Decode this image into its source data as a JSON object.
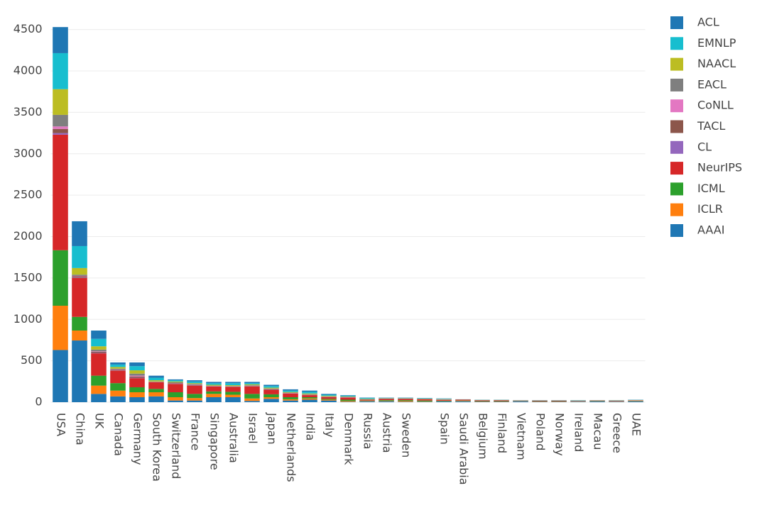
{
  "chart_data": {
    "type": "stacked-bar",
    "categories": [
      "USA",
      "China",
      "UK",
      "Canada",
      "Germany",
      "South Korea",
      "Switzerland",
      "France",
      "Singapore",
      "Australia",
      "Israel",
      "Japan",
      "Netherlands",
      "India",
      "Italy",
      "Denmark",
      "Russia",
      "Austria",
      "Sweden",
      null,
      "Spain",
      "Saudi Arabia",
      "Belgium",
      "Finland",
      "Vietnam",
      "Poland",
      "Norway",
      "Ireland",
      "Macau",
      "Greece",
      "UAE"
    ],
    "series": [
      {
        "name": "ACL",
        "color": "#1f77b4",
        "values": [
          315,
          300,
          100,
          25,
          45,
          25,
          10,
          15,
          15,
          15,
          15,
          15,
          15,
          15,
          10,
          5,
          5,
          3,
          3,
          3,
          4,
          1,
          1,
          1,
          1,
          1,
          1,
          2,
          1,
          2,
          2
        ]
      },
      {
        "name": "EMNLP",
        "color": "#17becf",
        "values": [
          435,
          265,
          90,
          30,
          50,
          30,
          15,
          20,
          20,
          25,
          15,
          20,
          17,
          20,
          12,
          10,
          10,
          4,
          4,
          4,
          4,
          1,
          2,
          2,
          2,
          2,
          2,
          3,
          2,
          2,
          3
        ]
      },
      {
        "name": "NAACL",
        "color": "#bcbd22",
        "values": [
          310,
          80,
          40,
          20,
          40,
          15,
          10,
          10,
          10,
          10,
          10,
          10,
          8,
          10,
          8,
          5,
          5,
          3,
          3,
          3,
          4,
          1,
          2,
          2,
          1,
          1,
          1,
          2,
          1,
          2,
          2
        ]
      },
      {
        "name": "EACL",
        "color": "#7f7f7f",
        "values": [
          140,
          15,
          20,
          10,
          25,
          3,
          10,
          10,
          4,
          4,
          6,
          8,
          4,
          5,
          5,
          5,
          3,
          3,
          3,
          3,
          3,
          1,
          2,
          2,
          1,
          1,
          1,
          2,
          1,
          2,
          1
        ]
      },
      {
        "name": "CoNLL",
        "color": "#e377c2",
        "values": [
          30,
          5,
          5,
          5,
          10,
          3,
          3,
          3,
          2,
          2,
          3,
          3,
          2,
          2,
          2,
          2,
          1,
          1,
          1,
          1,
          1,
          0,
          1,
          1,
          0,
          1,
          1,
          1,
          0,
          1,
          1
        ]
      },
      {
        "name": "TACL",
        "color": "#8c564b",
        "values": [
          50,
          15,
          15,
          8,
          15,
          3,
          5,
          5,
          3,
          3,
          5,
          3,
          3,
          2,
          2,
          2,
          1,
          1,
          1,
          1,
          1,
          1,
          1,
          1,
          1,
          1,
          1,
          1,
          0,
          1,
          1
        ]
      },
      {
        "name": "CL",
        "color": "#9467bd",
        "values": [
          20,
          5,
          5,
          2,
          5,
          1,
          2,
          2,
          1,
          1,
          1,
          1,
          1,
          1,
          1,
          1,
          0,
          0,
          0,
          0,
          0,
          0,
          0,
          0,
          0,
          0,
          0,
          0,
          0,
          0,
          0
        ]
      },
      {
        "name": "NeurIPS",
        "color": "#d62728",
        "values": [
          1395,
          470,
          270,
          150,
          110,
          80,
          100,
          100,
          60,
          60,
          90,
          55,
          45,
          25,
          20,
          25,
          10,
          15,
          15,
          15,
          10,
          10,
          8,
          8,
          4,
          6,
          6,
          4,
          4,
          5,
          4
        ]
      },
      {
        "name": "ICML",
        "color": "#2ca02c",
        "values": [
          670,
          165,
          120,
          90,
          60,
          40,
          60,
          50,
          30,
          35,
          55,
          35,
          25,
          15,
          10,
          15,
          5,
          10,
          10,
          10,
          5,
          5,
          5,
          5,
          3,
          4,
          4,
          3,
          3,
          3,
          3
        ]
      },
      {
        "name": "ICLR",
        "color": "#ff7f0e",
        "values": [
          535,
          120,
          100,
          70,
          60,
          50,
          40,
          30,
          40,
          30,
          30,
          20,
          15,
          15,
          10,
          10,
          5,
          5,
          10,
          5,
          3,
          5,
          3,
          3,
          2,
          3,
          3,
          2,
          3,
          2,
          3
        ]
      },
      {
        "name": "AAAI",
        "color": "#1f77b4",
        "values": [
          630,
          745,
          100,
          70,
          60,
          70,
          20,
          20,
          60,
          60,
          15,
          40,
          20,
          30,
          20,
          5,
          10,
          10,
          5,
          5,
          10,
          10,
          5,
          5,
          10,
          5,
          5,
          5,
          10,
          5,
          10
        ]
      }
    ],
    "ylim": [
      0,
      4600
    ],
    "yticks": [
      0,
      500,
      1000,
      1500,
      2000,
      2500,
      3000,
      3500,
      4000,
      4500
    ],
    "grid": true,
    "legend": "right"
  }
}
